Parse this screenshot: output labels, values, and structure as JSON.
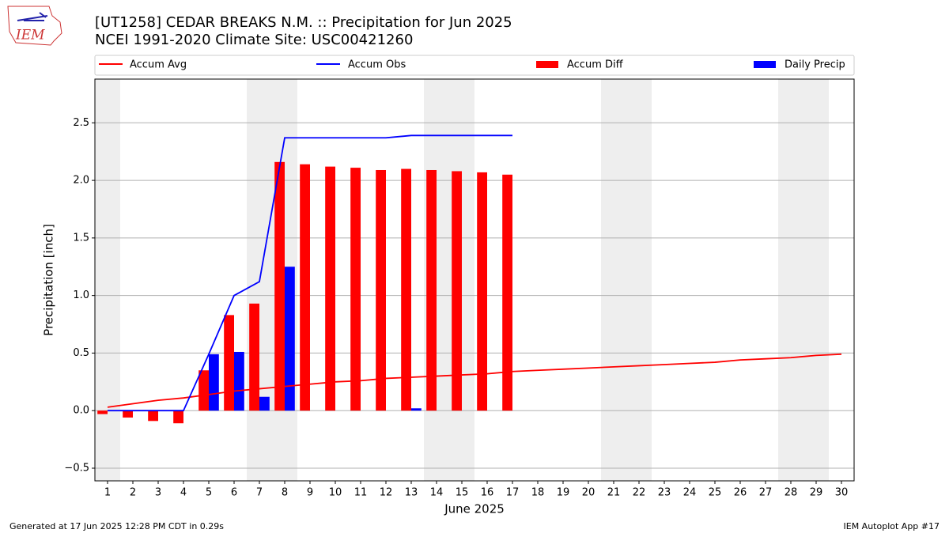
{
  "logo_text": "IEM",
  "footer_left": "Generated at 17 Jun 2025 12:28 PM CDT in 0.29s",
  "footer_right": "IEM Autoplot App #17",
  "chart_data": {
    "type": "bar_line",
    "title": "[UT1258] CEDAR BREAKS N.M. :: Precipitation for Jun 2025",
    "subtitle": "NCEI 1991-2020 Climate Site: USC00421260",
    "x_label": "June 2025",
    "y_label": "Precipitation [inch]",
    "x": [
      1,
      2,
      3,
      4,
      5,
      6,
      7,
      8,
      9,
      10,
      11,
      12,
      13,
      14,
      15,
      16,
      17,
      18,
      19,
      20,
      21,
      22,
      23,
      24,
      25,
      26,
      27,
      28,
      29,
      30
    ],
    "xlim": [
      0.5,
      30.5
    ],
    "xticks": [
      1,
      2,
      3,
      4,
      5,
      6,
      7,
      8,
      9,
      10,
      11,
      12,
      13,
      14,
      15,
      16,
      17,
      18,
      19,
      20,
      21,
      22,
      23,
      24,
      25,
      26,
      27,
      28,
      29,
      30
    ],
    "ylim": [
      -0.61,
      2.88
    ],
    "yticks": [
      {
        "value": -0.5,
        "label": "−0.5"
      },
      {
        "value": 0,
        "label": "0.0"
      },
      {
        "value": 0.5,
        "label": "0.5"
      },
      {
        "value": 1,
        "label": "1.0"
      },
      {
        "value": 1.5,
        "label": "1.5"
      },
      {
        "value": 2,
        "label": "2.0"
      },
      {
        "value": 2.5,
        "label": "2.5"
      }
    ],
    "grid": true,
    "shaded_spans": [
      [
        0.5,
        1.5
      ],
      [
        6.5,
        8.5
      ],
      [
        13.5,
        15.5
      ],
      [
        20.5,
        22.5
      ],
      [
        27.5,
        29.5
      ]
    ],
    "series": [
      {
        "name": "Accum Avg",
        "kind": "line",
        "color": "#ff0000",
        "values": [
          0.03,
          0.06,
          0.09,
          0.11,
          0.14,
          0.17,
          0.19,
          0.21,
          0.23,
          0.25,
          0.26,
          0.28,
          0.29,
          0.3,
          0.31,
          0.32,
          0.34,
          0.35,
          0.36,
          0.37,
          0.38,
          0.39,
          0.4,
          0.41,
          0.42,
          0.44,
          0.45,
          0.46,
          0.48,
          0.49
        ]
      },
      {
        "name": "Accum Obs",
        "kind": "line",
        "color": "#0000ff",
        "values": [
          0,
          0,
          0,
          0,
          0.49,
          1.0,
          1.12,
          2.37,
          2.37,
          2.37,
          2.37,
          2.37,
          2.39,
          2.39,
          2.39,
          2.39,
          2.39,
          null,
          null,
          null,
          null,
          null,
          null,
          null,
          null,
          null,
          null,
          null,
          null,
          null
        ]
      },
      {
        "name": "Accum Diff",
        "kind": "bar",
        "color": "#ff0000",
        "values": [
          -0.03,
          -0.06,
          -0.09,
          -0.11,
          0.35,
          0.83,
          0.93,
          2.16,
          2.14,
          2.12,
          2.11,
          2.09,
          2.1,
          2.09,
          2.08,
          2.07,
          2.05,
          null,
          null,
          null,
          null,
          null,
          null,
          null,
          null,
          null,
          null,
          null,
          null,
          null
        ]
      },
      {
        "name": "Daily Precip",
        "kind": "bar",
        "color": "#0000ff",
        "values": [
          0,
          0,
          0,
          0,
          0.49,
          0.51,
          0.12,
          1.25,
          0,
          0,
          0,
          0,
          0.02,
          0,
          0,
          0,
          0,
          null,
          null,
          null,
          null,
          null,
          null,
          null,
          null,
          null,
          null,
          null,
          null,
          null
        ]
      }
    ]
  }
}
